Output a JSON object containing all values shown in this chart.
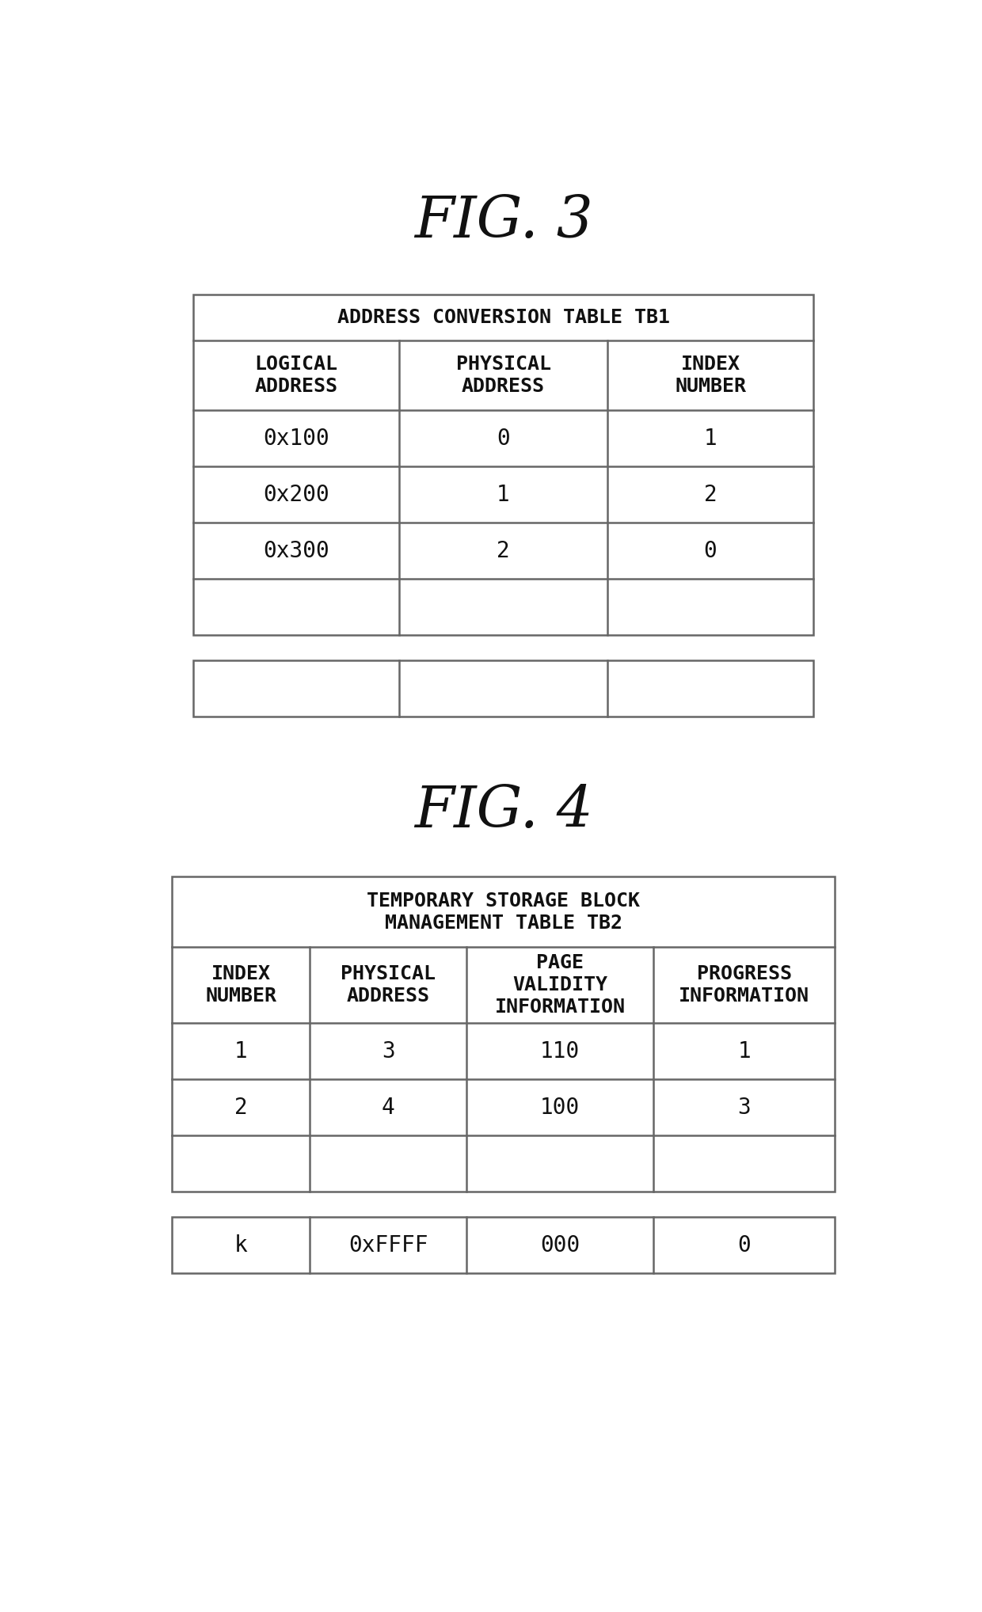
{
  "fig3_title": "FIG. 3",
  "fig4_title": "FIG. 4",
  "table1_header": "ADDRESS CONVERSION TABLE TB1",
  "table1_col_headers": [
    "LOGICAL\nADDRESS",
    "PHYSICAL\nADDRESS",
    "INDEX\nNUMBER"
  ],
  "table1_rows": [
    [
      "0x100",
      "0",
      "1"
    ],
    [
      "0x200",
      "1",
      "2"
    ],
    [
      "0x300",
      "2",
      "0"
    ],
    [
      "",
      "",
      ""
    ]
  ],
  "table1_extra_row": [
    "",
    "",
    ""
  ],
  "table2_header": "TEMPORARY STORAGE BLOCK\nMANAGEMENT TABLE TB2",
  "table2_col_headers": [
    "INDEX\nNUMBER",
    "PHYSICAL\nADDRESS",
    "PAGE\nVALIDITY\nINFORMATION",
    "PROGRESS\nINFORMATION"
  ],
  "table2_rows": [
    [
      "1",
      "3",
      "110",
      "1"
    ],
    [
      "2",
      "4",
      "100",
      "3"
    ],
    [
      "",
      "",
      "",
      ""
    ]
  ],
  "table2_last_row": [
    "k",
    "0xFFFF",
    "000",
    "0"
  ],
  "bg_color": "#ffffff",
  "border_color": "#666666",
  "text_color": "#111111",
  "font_size_title": 52,
  "font_size_header": 18,
  "font_size_cell": 20
}
